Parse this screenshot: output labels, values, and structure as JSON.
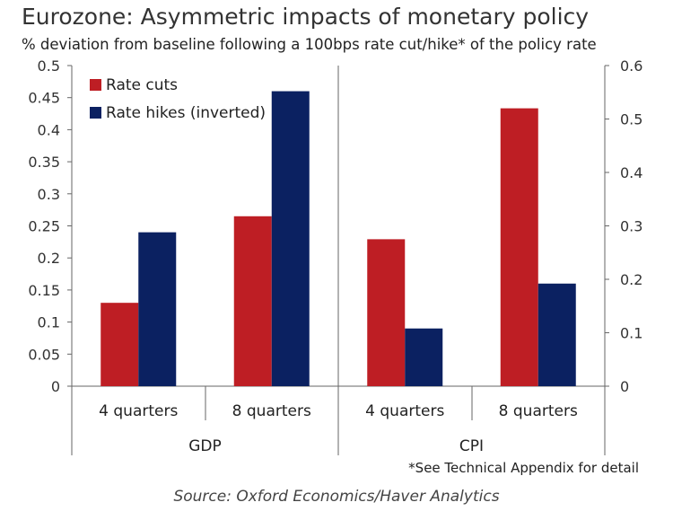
{
  "chart_data": {
    "type": "bar",
    "title": "Eurozone: Asymmetric impacts of monetary policy",
    "subtitle": "% deviation from baseline following a 100bps rate cut/hike* of the policy rate",
    "footnote": "*See Technical Appendix for detail",
    "source": "Source: Oxford Economics/Haver Analytics",
    "colors": {
      "Rate cuts": "#be1e24",
      "Rate hikes (inverted)": "#0b2161"
    },
    "legend_position": "top-left",
    "grid": false,
    "panels": [
      {
        "group": "GDP",
        "axis": "left",
        "ylim": [
          0,
          0.5
        ],
        "yticks": [
          "0",
          "0.05",
          "0.1",
          "0.15",
          "0.2",
          "0.25",
          "0.3",
          "0.35",
          "0.4",
          "0.45",
          "0.5"
        ],
        "categories": [
          "4 quarters",
          "8 quarters"
        ],
        "series": [
          {
            "name": "Rate cuts",
            "values": [
              0.13,
              0.265
            ]
          },
          {
            "name": "Rate hikes (inverted)",
            "values": [
              0.24,
              0.46
            ]
          }
        ]
      },
      {
        "group": "CPI",
        "axis": "right",
        "ylim": [
          0,
          0.6
        ],
        "yticks": [
          "0",
          "0.1",
          "0.2",
          "0.3",
          "0.4",
          "0.5",
          "0.6"
        ],
        "categories": [
          "4 quarters",
          "8 quarters"
        ],
        "series": [
          {
            "name": "Rate cuts",
            "values": [
              0.275,
              0.52
            ]
          },
          {
            "name": "Rate hikes (inverted)",
            "values": [
              0.108,
              0.192
            ]
          }
        ]
      }
    ]
  }
}
